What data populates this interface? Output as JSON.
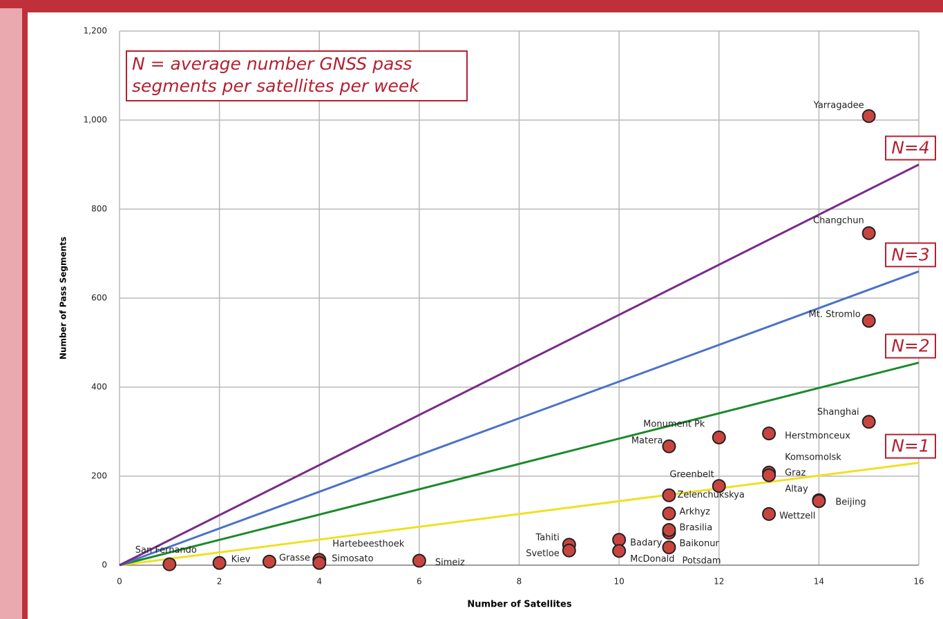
{
  "chart_data": {
    "type": "scatter",
    "annotation": [
      "N = average number GNSS pass",
      "segments per satellites per week"
    ],
    "x_label": "Number of Satellites",
    "y_label": "Number of Pass Segments",
    "xlim": [
      0,
      16
    ],
    "ylim": [
      0,
      1200
    ],
    "xticks": [
      0,
      2,
      4,
      6,
      8,
      10,
      12,
      14,
      16
    ],
    "yticks": [
      0,
      200,
      400,
      600,
      800,
      {
        "value": 1000,
        "label": "1,000"
      },
      {
        "value": 1200,
        "label": "1,200"
      }
    ],
    "grid": true,
    "point_color": "#c8453f",
    "point_labels": [
      "San Fernando",
      "Kiev",
      "Grasse",
      "Hartebeesthoek",
      "Simosato",
      "Simeiz",
      "Tahiti",
      "Svetloe",
      "Badary",
      "McDonald",
      "Baikonur",
      "Potsdam",
      "Brasilia",
      "Arkhyz",
      "Zelenchukskya",
      "Matera",
      "Monument Pk",
      "Greenbelt",
      "Herstmonceux",
      "Komsomolsk",
      "Graz",
      "Wettzell",
      "Altay",
      "Beijing",
      "Shanghai",
      "Mt. Stromlo",
      "Changchun",
      "Yarragadee"
    ],
    "x": [
      1,
      2,
      3,
      4,
      4,
      6,
      9,
      9,
      10,
      10,
      11,
      11,
      11,
      11,
      11,
      11,
      12,
      12,
      13,
      13,
      13,
      13,
      14,
      14,
      15,
      15,
      15,
      15
    ],
    "values": [
      2,
      5,
      8,
      12,
      5,
      10,
      46,
      33,
      57,
      32,
      40,
      73,
      79,
      116,
      157,
      267,
      287,
      178,
      296,
      208,
      202,
      115,
      146,
      144,
      322,
      549,
      746,
      1009
    ],
    "lines": [
      {
        "name": "N=1",
        "color": "#f0e020",
        "x": [
          0,
          16
        ],
        "values": [
          0,
          230
        ]
      },
      {
        "name": "N=2",
        "color": "#1a8a2a",
        "x": [
          0,
          16
        ],
        "values": [
          0,
          455
        ]
      },
      {
        "name": "N=3",
        "color": "#4a72c8",
        "x": [
          0,
          16
        ],
        "values": [
          0,
          660
        ]
      },
      {
        "name": "N=4",
        "color": "#7a2a8a",
        "x": [
          0,
          16
        ],
        "values": [
          0,
          900
        ]
      }
    ]
  }
}
